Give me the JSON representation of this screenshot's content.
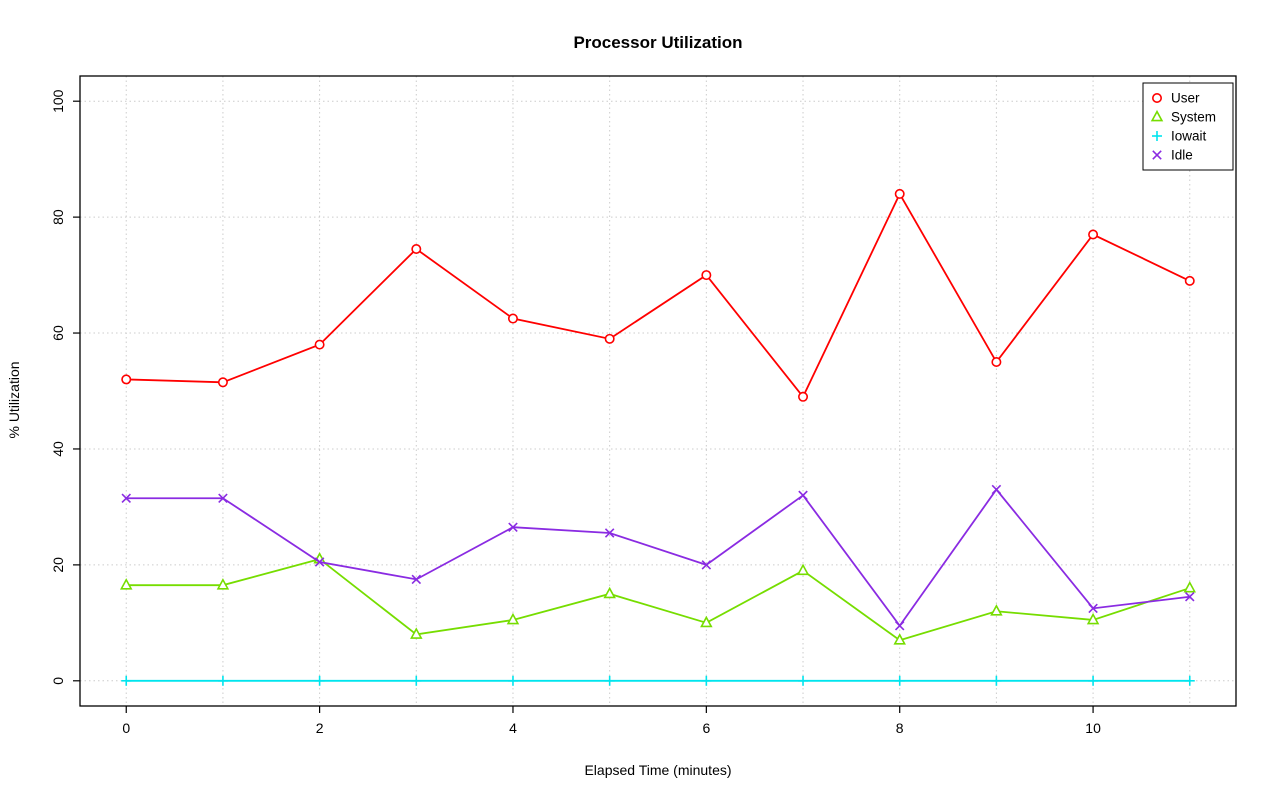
{
  "chart_data": {
    "type": "line",
    "title": "Processor Utilization",
    "xlabel": "Elapsed Time (minutes)",
    "ylabel": "% Utilization",
    "x": [
      0,
      1,
      2,
      3,
      4,
      5,
      6,
      7,
      8,
      9,
      10,
      11
    ],
    "xlim": [
      0,
      11
    ],
    "ylim": [
      0,
      100
    ],
    "x_ticks": [
      0,
      2,
      4,
      6,
      8,
      10
    ],
    "y_ticks": [
      0,
      20,
      40,
      60,
      80,
      100
    ],
    "grid": true,
    "legend_position": "top-right",
    "series": [
      {
        "name": "User",
        "color": "#FF0000",
        "marker": "circle",
        "values": [
          52,
          51.5,
          58,
          74.5,
          62.5,
          59,
          70,
          49,
          84,
          55,
          77,
          69
        ]
      },
      {
        "name": "System",
        "color": "#76DD00",
        "marker": "triangle",
        "values": [
          16.5,
          16.5,
          21,
          8,
          10.5,
          15,
          10,
          19,
          7,
          12,
          10.5,
          16
        ]
      },
      {
        "name": "Iowait",
        "color": "#00E5EE",
        "marker": "plus",
        "values": [
          0,
          0,
          0,
          0,
          0,
          0,
          0,
          0,
          0,
          0,
          0,
          0
        ]
      },
      {
        "name": "Idle",
        "color": "#8A2BE2",
        "marker": "x",
        "values": [
          31.5,
          31.5,
          20.5,
          17.5,
          26.5,
          25.5,
          20,
          32,
          9.5,
          33,
          12.5,
          14.5
        ]
      }
    ]
  }
}
